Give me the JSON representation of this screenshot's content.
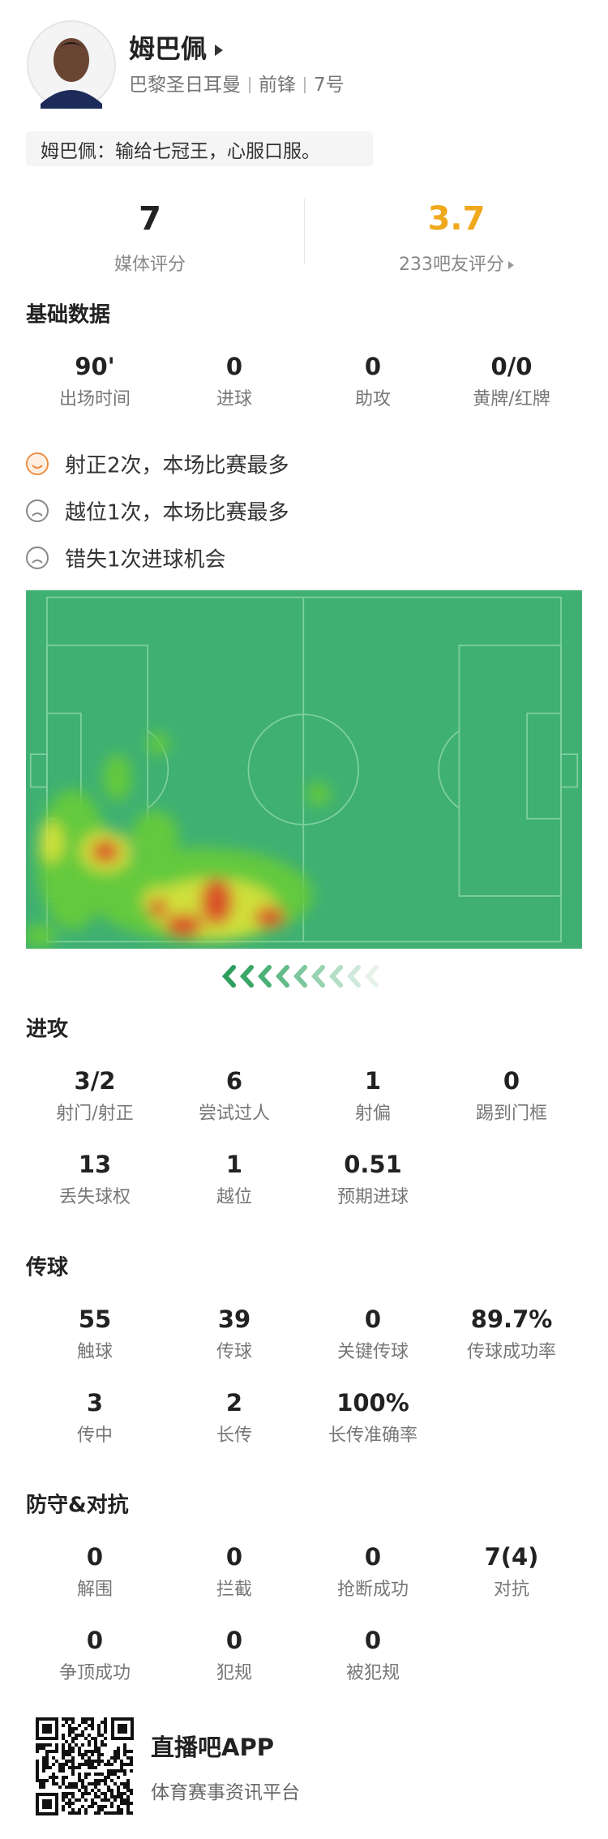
{
  "header": {
    "name": "姆巴佩",
    "team": "巴黎圣日耳曼",
    "position": "前锋",
    "number": "7号",
    "quote": "姆巴佩：输给七冠王，心服口服。"
  },
  "ratings": [
    {
      "value": "7",
      "label": "媒体评分"
    },
    {
      "value": "3.7",
      "label": "233吧友评分"
    }
  ],
  "sections": [
    {
      "title": "基础数据",
      "stats": [
        {
          "value": "90'",
          "label": "出场时间"
        },
        {
          "value": "0",
          "label": "进球"
        },
        {
          "value": "0",
          "label": "助攻"
        },
        {
          "value": "0/0",
          "label": "黄牌/红牌"
        }
      ]
    },
    {
      "title": "进攻",
      "stats": [
        {
          "value": "3/2",
          "label": "射门/射正"
        },
        {
          "value": "6",
          "label": "尝试过人"
        },
        {
          "value": "1",
          "label": "射偏"
        },
        {
          "value": "0",
          "label": "踢到门框"
        },
        {
          "value": "13",
          "label": "丢失球权"
        },
        {
          "value": "1",
          "label": "越位"
        },
        {
          "value": "0.51",
          "label": "预期进球"
        }
      ]
    },
    {
      "title": "传球",
      "stats": [
        {
          "value": "55",
          "label": "触球"
        },
        {
          "value": "39",
          "label": "传球"
        },
        {
          "value": "0",
          "label": "关键传球"
        },
        {
          "value": "89.7%",
          "label": "传球成功率"
        },
        {
          "value": "3",
          "label": "传中"
        },
        {
          "value": "2",
          "label": "长传"
        },
        {
          "value": "100%",
          "label": "长传准确率"
        }
      ]
    },
    {
      "title": "防守&对抗",
      "stats": [
        {
          "value": "0",
          "label": "解围"
        },
        {
          "value": "0",
          "label": "拦截"
        },
        {
          "value": "0",
          "label": "抢断成功"
        },
        {
          "value": "7(4)",
          "label": "对抗"
        },
        {
          "value": "0",
          "label": "争顶成功"
        },
        {
          "value": "0",
          "label": "犯规"
        },
        {
          "value": "0",
          "label": "被犯规"
        }
      ]
    }
  ],
  "highlights": [
    "射正2次，本场比赛最多",
    "越位1次，本场比赛最多",
    "错失1次进球机会"
  ],
  "footer": {
    "app": "直播吧APP",
    "slogan": "体育赛事资讯平台"
  }
}
